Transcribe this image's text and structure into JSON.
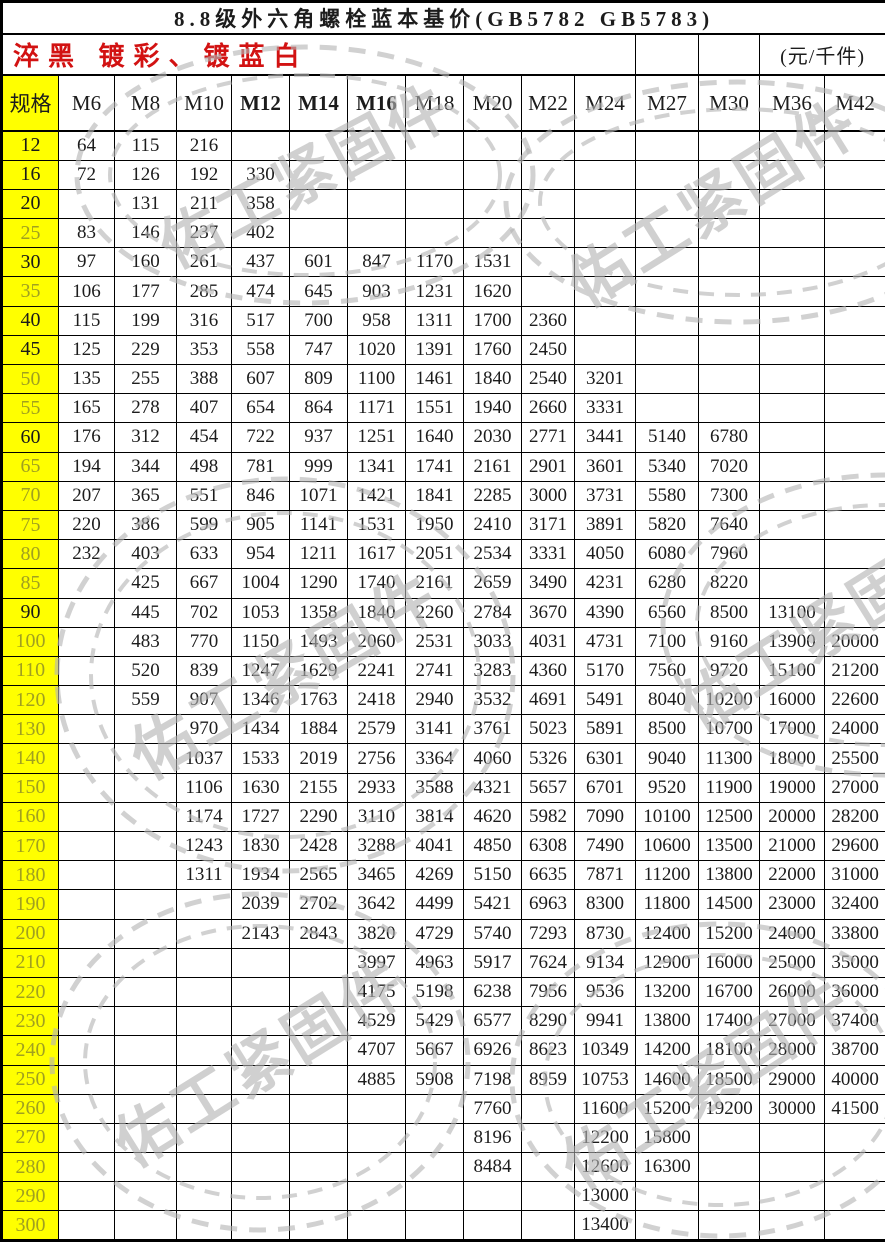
{
  "title": "8.8级外六角螺栓蓝本基价(GB5782 GB5783)",
  "subtitle": {
    "finishes": "淬黑 镀彩、镀蓝白",
    "unit": "(元/千件)"
  },
  "header": {
    "spec_label": "规格",
    "columns": [
      "M6",
      "M8",
      "M10",
      "M12",
      "M14",
      "M16",
      "M18",
      "M20",
      "M22",
      "M24",
      "M27",
      "M30",
      "M36",
      "M42"
    ],
    "bold_columns": [
      "M12",
      "M14",
      "M16"
    ]
  },
  "watermark": {
    "text": "佑工紧固件"
  },
  "colors": {
    "highlight_yellow": "#ffff00",
    "subtitle_red": "#d21212",
    "grid_black": "#000000",
    "watermark_gray": "#b5b5b5"
  },
  "rows": [
    {
      "spec": "12",
      "dim": false,
      "values": [
        "64",
        "115",
        "216",
        "",
        "",
        "",
        "",
        "",
        "",
        "",
        "",
        "",
        "",
        ""
      ]
    },
    {
      "spec": "16",
      "dim": false,
      "values": [
        "72",
        "126",
        "192",
        "330",
        "",
        "",
        "",
        "",
        "",
        "",
        "",
        "",
        "",
        ""
      ]
    },
    {
      "spec": "20",
      "dim": false,
      "values": [
        "",
        "131",
        "211",
        "358",
        "",
        "",
        "",
        "",
        "",
        "",
        "",
        "",
        "",
        ""
      ]
    },
    {
      "spec": "25",
      "dim": true,
      "values": [
        "83",
        "146",
        "237",
        "402",
        "",
        "",
        "",
        "",
        "",
        "",
        "",
        "",
        "",
        ""
      ]
    },
    {
      "spec": "30",
      "dim": false,
      "values": [
        "97",
        "160",
        "261",
        "437",
        "601",
        "847",
        "1170",
        "1531",
        "",
        "",
        "",
        "",
        "",
        ""
      ]
    },
    {
      "spec": "35",
      "dim": true,
      "values": [
        "106",
        "177",
        "285",
        "474",
        "645",
        "903",
        "1231",
        "1620",
        "",
        "",
        "",
        "",
        "",
        ""
      ]
    },
    {
      "spec": "40",
      "dim": false,
      "values": [
        "115",
        "199",
        "316",
        "517",
        "700",
        "958",
        "1311",
        "1700",
        "2360",
        "",
        "",
        "",
        "",
        ""
      ]
    },
    {
      "spec": "45",
      "dim": false,
      "values": [
        "125",
        "229",
        "353",
        "558",
        "747",
        "1020",
        "1391",
        "1760",
        "2450",
        "",
        "",
        "",
        "",
        ""
      ]
    },
    {
      "spec": "50",
      "dim": true,
      "values": [
        "135",
        "255",
        "388",
        "607",
        "809",
        "1100",
        "1461",
        "1840",
        "2540",
        "3201",
        "",
        "",
        "",
        ""
      ]
    },
    {
      "spec": "55",
      "dim": true,
      "values": [
        "165",
        "278",
        "407",
        "654",
        "864",
        "1171",
        "1551",
        "1940",
        "2660",
        "3331",
        "",
        "",
        "",
        ""
      ]
    },
    {
      "spec": "60",
      "dim": false,
      "values": [
        "176",
        "312",
        "454",
        "722",
        "937",
        "1251",
        "1640",
        "2030",
        "2771",
        "3441",
        "5140",
        "6780",
        "",
        ""
      ]
    },
    {
      "spec": "65",
      "dim": true,
      "values": [
        "194",
        "344",
        "498",
        "781",
        "999",
        "1341",
        "1741",
        "2161",
        "2901",
        "3601",
        "5340",
        "7020",
        "",
        ""
      ]
    },
    {
      "spec": "70",
      "dim": true,
      "values": [
        "207",
        "365",
        "551",
        "846",
        "1071",
        "1421",
        "1841",
        "2285",
        "3000",
        "3731",
        "5580",
        "7300",
        "",
        ""
      ]
    },
    {
      "spec": "75",
      "dim": true,
      "values": [
        "220",
        "386",
        "599",
        "905",
        "1141",
        "1531",
        "1950",
        "2410",
        "3171",
        "3891",
        "5820",
        "7640",
        "",
        ""
      ]
    },
    {
      "spec": "80",
      "dim": true,
      "values": [
        "232",
        "403",
        "633",
        "954",
        "1211",
        "1617",
        "2051",
        "2534",
        "3331",
        "4050",
        "6080",
        "7960",
        "",
        ""
      ]
    },
    {
      "spec": "85",
      "dim": true,
      "values": [
        "",
        "425",
        "667",
        "1004",
        "1290",
        "1740",
        "2161",
        "2659",
        "3490",
        "4231",
        "6280",
        "8220",
        "",
        ""
      ]
    },
    {
      "spec": "90",
      "dim": false,
      "values": [
        "",
        "445",
        "702",
        "1053",
        "1358",
        "1840",
        "2260",
        "2784",
        "3670",
        "4390",
        "6560",
        "8500",
        "13100",
        ""
      ]
    },
    {
      "spec": "100",
      "dim": true,
      "values": [
        "",
        "483",
        "770",
        "1150",
        "1493",
        "2060",
        "2531",
        "3033",
        "4031",
        "4731",
        "7100",
        "9160",
        "13900",
        "20000"
      ]
    },
    {
      "spec": "110",
      "dim": true,
      "values": [
        "",
        "520",
        "839",
        "1247",
        "1629",
        "2241",
        "2741",
        "3283",
        "4360",
        "5170",
        "7560",
        "9720",
        "15100",
        "21200"
      ]
    },
    {
      "spec": "120",
      "dim": true,
      "values": [
        "",
        "559",
        "907",
        "1346",
        "1763",
        "2418",
        "2940",
        "3532",
        "4691",
        "5491",
        "8040",
        "10200",
        "16000",
        "22600"
      ]
    },
    {
      "spec": "130",
      "dim": true,
      "values": [
        "",
        "",
        "970",
        "1434",
        "1884",
        "2579",
        "3141",
        "3761",
        "5023",
        "5891",
        "8500",
        "10700",
        "17000",
        "24000"
      ]
    },
    {
      "spec": "140",
      "dim": true,
      "values": [
        "",
        "",
        "1037",
        "1533",
        "2019",
        "2756",
        "3364",
        "4060",
        "5326",
        "6301",
        "9040",
        "11300",
        "18000",
        "25500"
      ]
    },
    {
      "spec": "150",
      "dim": true,
      "values": [
        "",
        "",
        "1106",
        "1630",
        "2155",
        "2933",
        "3588",
        "4321",
        "5657",
        "6701",
        "9520",
        "11900",
        "19000",
        "27000"
      ]
    },
    {
      "spec": "160",
      "dim": true,
      "values": [
        "",
        "",
        "1174",
        "1727",
        "2290",
        "3110",
        "3814",
        "4620",
        "5982",
        "7090",
        "10100",
        "12500",
        "20000",
        "28200"
      ]
    },
    {
      "spec": "170",
      "dim": true,
      "values": [
        "",
        "",
        "1243",
        "1830",
        "2428",
        "3288",
        "4041",
        "4850",
        "6308",
        "7490",
        "10600",
        "13500",
        "21000",
        "29600"
      ]
    },
    {
      "spec": "180",
      "dim": true,
      "values": [
        "",
        "",
        "1311",
        "1934",
        "2565",
        "3465",
        "4269",
        "5150",
        "6635",
        "7871",
        "11200",
        "13800",
        "22000",
        "31000"
      ]
    },
    {
      "spec": "190",
      "dim": true,
      "values": [
        "",
        "",
        "",
        "2039",
        "2702",
        "3642",
        "4499",
        "5421",
        "6963",
        "8300",
        "11800",
        "14500",
        "23000",
        "32400"
      ]
    },
    {
      "spec": "200",
      "dim": true,
      "values": [
        "",
        "",
        "",
        "2143",
        "2843",
        "3820",
        "4729",
        "5740",
        "7293",
        "8730",
        "12400",
        "15200",
        "24000",
        "33800"
      ]
    },
    {
      "spec": "210",
      "dim": true,
      "values": [
        "",
        "",
        "",
        "",
        "",
        "3997",
        "4963",
        "5917",
        "7624",
        "9134",
        "12900",
        "16000",
        "25000",
        "35000"
      ]
    },
    {
      "spec": "220",
      "dim": true,
      "values": [
        "",
        "",
        "",
        "",
        "",
        "4175",
        "5198",
        "6238",
        "7956",
        "9536",
        "13200",
        "16700",
        "26000",
        "36000"
      ]
    },
    {
      "spec": "230",
      "dim": true,
      "values": [
        "",
        "",
        "",
        "",
        "",
        "4529",
        "5429",
        "6577",
        "8290",
        "9941",
        "13800",
        "17400",
        "27000",
        "37400"
      ]
    },
    {
      "spec": "240",
      "dim": true,
      "values": [
        "",
        "",
        "",
        "",
        "",
        "4707",
        "5667",
        "6926",
        "8623",
        "10349",
        "14200",
        "18100",
        "28000",
        "38700"
      ]
    },
    {
      "spec": "250",
      "dim": true,
      "values": [
        "",
        "",
        "",
        "",
        "",
        "4885",
        "5908",
        "7198",
        "8959",
        "10753",
        "14600",
        "18500",
        "29000",
        "40000"
      ]
    },
    {
      "spec": "260",
      "dim": true,
      "values": [
        "",
        "",
        "",
        "",
        "",
        "",
        "",
        "7760",
        "",
        "11600",
        "15200",
        "19200",
        "30000",
        "41500"
      ]
    },
    {
      "spec": "270",
      "dim": true,
      "values": [
        "",
        "",
        "",
        "",
        "",
        "",
        "",
        "8196",
        "",
        "12200",
        "15800",
        "",
        "",
        ""
      ]
    },
    {
      "spec": "280",
      "dim": true,
      "values": [
        "",
        "",
        "",
        "",
        "",
        "",
        "",
        "8484",
        "",
        "12600",
        "16300",
        "",
        "",
        ""
      ]
    },
    {
      "spec": "290",
      "dim": true,
      "values": [
        "",
        "",
        "",
        "",
        "",
        "",
        "",
        "",
        "",
        "13000",
        "",
        "",
        "",
        ""
      ]
    },
    {
      "spec": "300",
      "dim": true,
      "values": [
        "",
        "",
        "",
        "",
        "",
        "",
        "",
        "",
        "",
        "13400",
        "",
        "",
        "",
        ""
      ]
    }
  ]
}
